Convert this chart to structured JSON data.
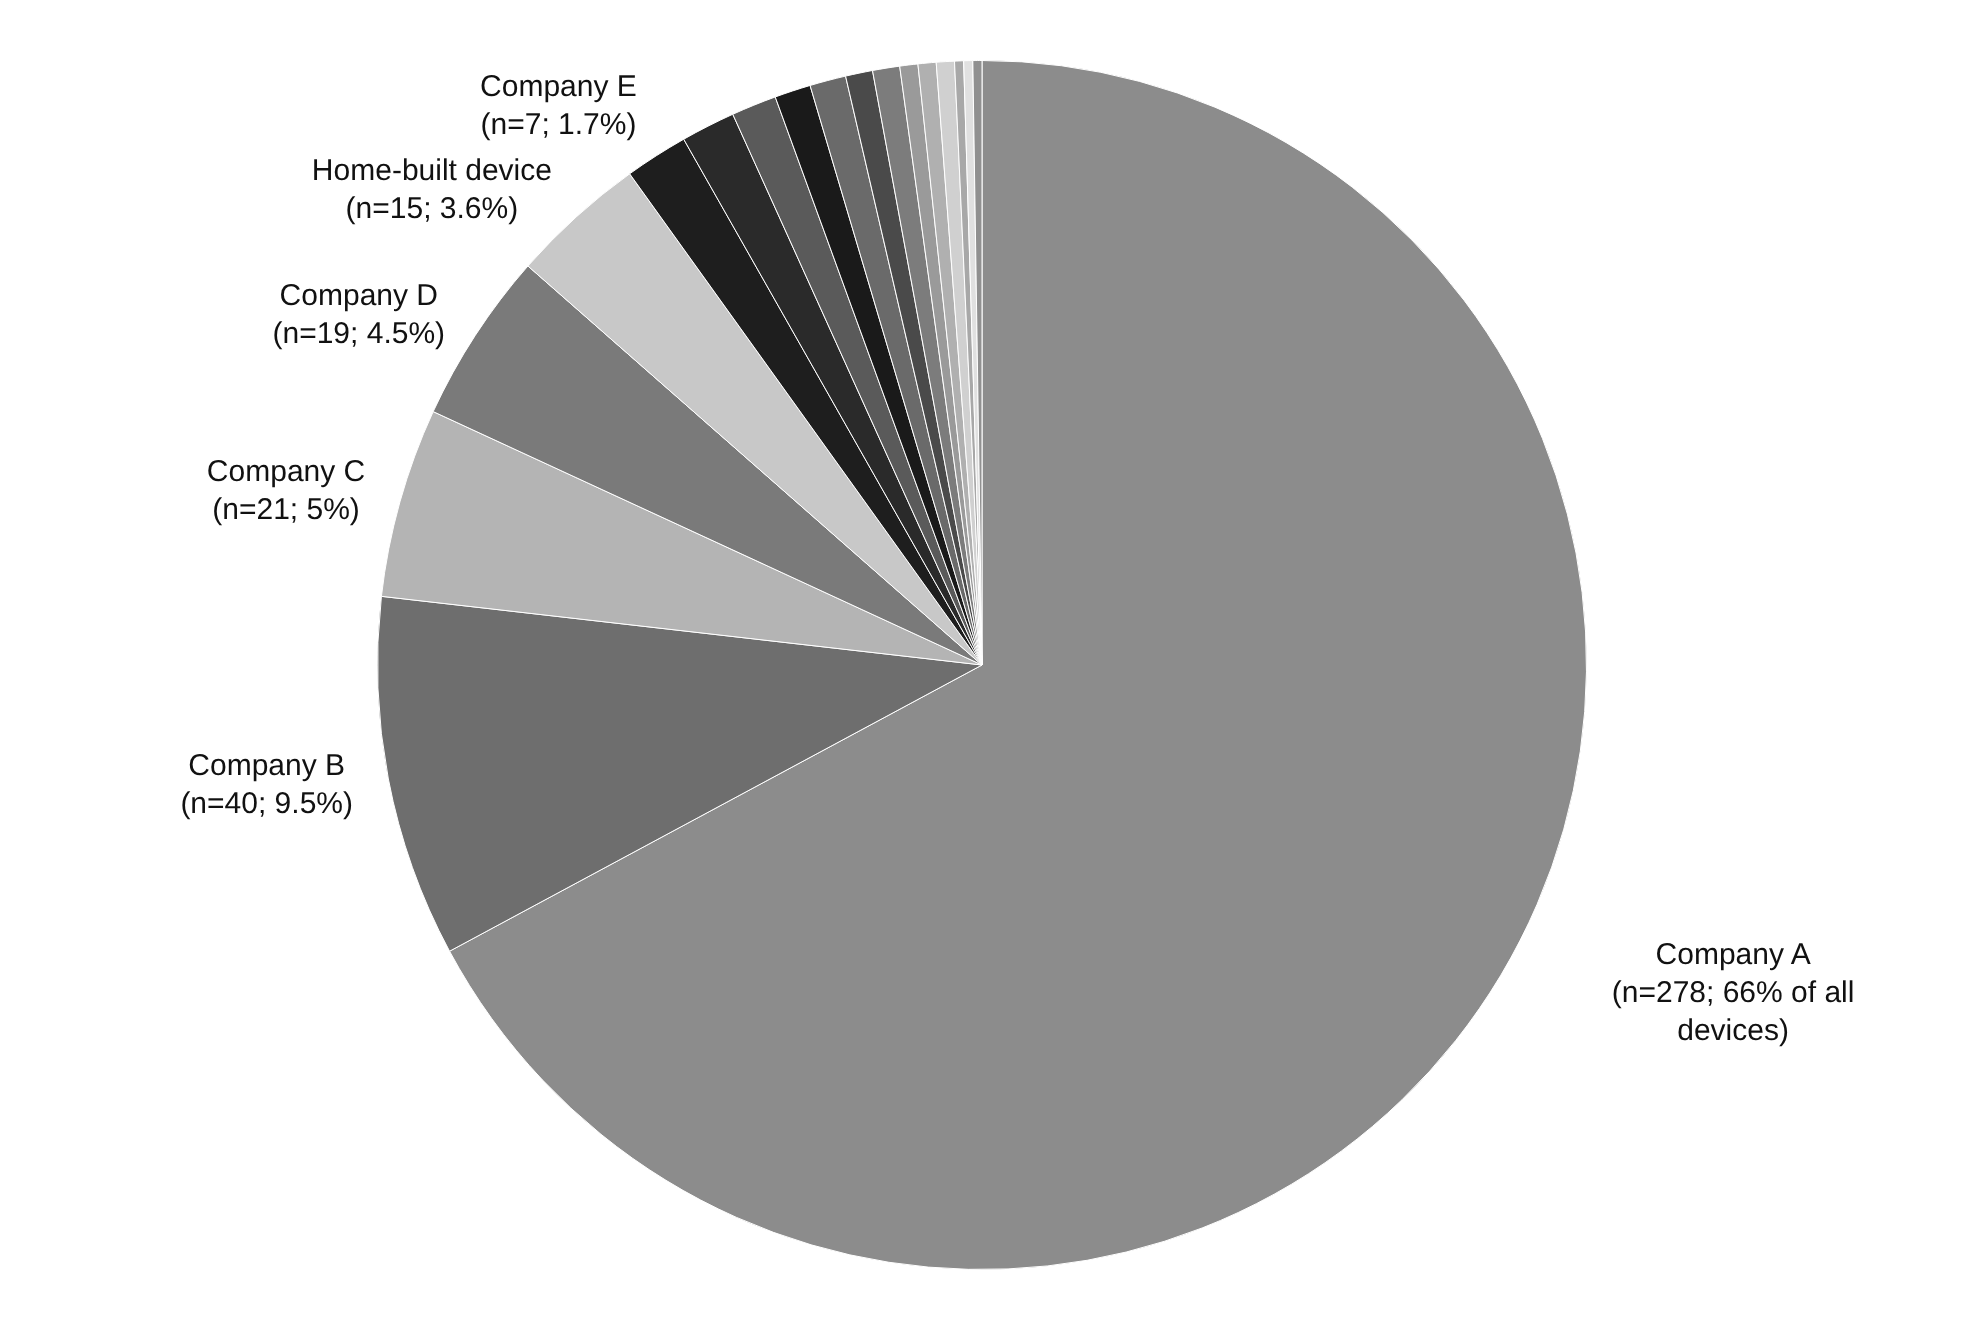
{
  "chart_data": {
    "type": "pie",
    "categories": [
      "Company A",
      "Company B",
      "Company C",
      "Company D",
      "Home-built device",
      "Company E",
      null,
      null,
      null,
      null,
      null,
      null,
      null,
      null,
      null,
      null,
      null,
      null
    ],
    "values": [
      278,
      40,
      21,
      19,
      15,
      7,
      6,
      5,
      4,
      4,
      3,
      3,
      2,
      2,
      2,
      1,
      1,
      1
    ],
    "value_labels": [
      "(n=278; 66% of all devices)",
      "(n=40; 9.5%)",
      "(n=21; 5%)",
      "(n=19; 4.5%)",
      "(n=15; 3.6%)",
      "(n=7; 1.7%)",
      null,
      null,
      null,
      null,
      null,
      null,
      null,
      null,
      null,
      null,
      null,
      null
    ],
    "colors": [
      "#8c8c8c",
      "#6e6e6e",
      "#b4b4b4",
      "#7a7a7a",
      "#c8c8c8",
      "#1e1e1e",
      "#2a2a2a",
      "#5a5a5a",
      "#1a1a1a",
      "#6a6a6a",
      "#4a4a4a",
      "#7c7c7c",
      "#9a9a9a",
      "#b0b0b0",
      "#d0d0d0",
      "#a8a8a8",
      "#e0e0e0",
      "#909090"
    ],
    "legend": false
  }
}
